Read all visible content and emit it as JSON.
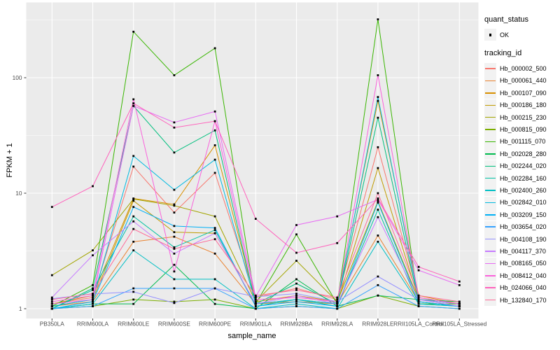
{
  "chart_data": {
    "type": "line",
    "title": "",
    "xlabel": "sample_name",
    "ylabel": "FPKM + 1",
    "y_scale": "log10",
    "y_ticks": [
      1,
      10,
      100
    ],
    "y_minor_ticks": [
      3.162,
      31.62,
      316.2
    ],
    "ylim": [
      1,
      460
    ],
    "grid": "on",
    "legend_position": "right",
    "x_categories": [
      "PB350LA",
      "RRIM600LA",
      "RRIM600LE",
      "RRIM600SE",
      "RRIM600PE",
      "RRIM901LA",
      "RRIM928BA",
      "RRIM928LA",
      "RRIM928LE",
      "RRII105LA_Control",
      "RRII105LA_Stressed"
    ],
    "legend": {
      "quant_status_title": "quant_status",
      "ok_label": "OK",
      "tracking_id_title": "tracking_id"
    },
    "series": [
      {
        "name": "Hb_000002_500",
        "color": "#F8766D",
        "values": [
          1.1,
          1.25,
          17,
          6.8,
          15,
          1.25,
          1.5,
          1.2,
          25,
          1.25,
          1.1
        ]
      },
      {
        "name": "Hb_000061_440",
        "color": "#EA8331",
        "values": [
          1.05,
          1.15,
          3.8,
          4.2,
          3.0,
          1.1,
          1.15,
          1.1,
          4.3,
          1.15,
          1.05
        ]
      },
      {
        "name": "Hb_000107_090",
        "color": "#D89000",
        "values": [
          1.1,
          1.3,
          9.0,
          8.0,
          26,
          1.15,
          1.3,
          1.15,
          63,
          1.3,
          1.1
        ]
      },
      {
        "name": "Hb_000186_180",
        "color": "#C09B00",
        "values": [
          1.05,
          1.2,
          8.6,
          4.6,
          4.5,
          1.1,
          1.2,
          1.1,
          16.5,
          1.2,
          1.1
        ]
      },
      {
        "name": "Hb_000215_230",
        "color": "#A3A500",
        "values": [
          1.95,
          3.2,
          8.9,
          7.8,
          6.3,
          1.15,
          2.6,
          1.15,
          8.5,
          1.2,
          1.1
        ]
      },
      {
        "name": "Hb_000815_090",
        "color": "#7CAE00",
        "values": [
          1.0,
          1.05,
          1.2,
          1.15,
          1.2,
          1.0,
          1.05,
          1.0,
          1.3,
          1.05,
          1.0
        ]
      },
      {
        "name": "Hb_001115_070",
        "color": "#39B600",
        "values": [
          1.05,
          1.6,
          250,
          105,
          180,
          1.1,
          4.4,
          1.1,
          320,
          1.1,
          1.1
        ]
      },
      {
        "name": "Hb_002028_280",
        "color": "#00BB4E",
        "values": [
          1.0,
          1.1,
          1.1,
          2.4,
          1.1,
          1.0,
          1.8,
          1.05,
          1.3,
          1.2,
          1.15
        ]
      },
      {
        "name": "Hb_002244_020",
        "color": "#00BF7D",
        "values": [
          1.0,
          1.5,
          57,
          22.5,
          35,
          1.1,
          1.65,
          1.1,
          45,
          1.15,
          1.05
        ]
      },
      {
        "name": "Hb_002284_160",
        "color": "#00C1A3",
        "values": [
          1.0,
          1.45,
          6.3,
          3.4,
          4.8,
          1.05,
          1.2,
          1.05,
          7.2,
          1.1,
          1.05
        ]
      },
      {
        "name": "Hb_002400_260",
        "color": "#00BFC4",
        "values": [
          1.0,
          1.1,
          3.2,
          1.8,
          1.8,
          1.0,
          1.1,
          1.0,
          3.8,
          1.1,
          1.05
        ]
      },
      {
        "name": "Hb_002842_010",
        "color": "#00BAE0",
        "values": [
          1.05,
          1.2,
          21,
          10.7,
          19.5,
          1.1,
          1.2,
          1.1,
          68,
          1.2,
          1.1
        ]
      },
      {
        "name": "Hb_003209_150",
        "color": "#00B0F6",
        "values": [
          1.0,
          1.15,
          7.6,
          5.2,
          5.0,
          1.05,
          1.15,
          1.05,
          8.3,
          1.15,
          1.05
        ]
      },
      {
        "name": "Hb_003654_020",
        "color": "#35A2FF",
        "values": [
          1.0,
          1.05,
          1.5,
          1.5,
          1.5,
          1.0,
          1.05,
          1.0,
          1.6,
          1.05,
          1.0
        ]
      },
      {
        "name": "Hb_004108_190",
        "color": "#9590FF",
        "values": [
          1.22,
          1.34,
          1.4,
          1.12,
          1.5,
          1.27,
          1.35,
          1.15,
          1.9,
          1.2,
          1.1
        ]
      },
      {
        "name": "Hb_004117_370",
        "color": "#C77CFF",
        "values": [
          1.25,
          2.9,
          5.7,
          3.0,
          4.5,
          1.1,
          1.3,
          1.1,
          6.2,
          1.2,
          1.05
        ]
      },
      {
        "name": "Hb_008165_050",
        "color": "#E76BF3",
        "values": [
          1.1,
          1.2,
          57,
          41,
          51,
          1.27,
          5.3,
          6.3,
          8.8,
          2.15,
          1.6
        ]
      },
      {
        "name": "Hb_008412_040",
        "color": "#FA62DB",
        "values": [
          1.15,
          1.3,
          65,
          2.1,
          42,
          1.2,
          1.25,
          1.15,
          105,
          1.25,
          1.1
        ]
      },
      {
        "name": "Hb_024066_040",
        "color": "#FF62BC",
        "values": [
          7.6,
          11.5,
          60,
          37,
          42,
          6.0,
          3.05,
          3.7,
          9.0,
          2.3,
          1.72
        ]
      },
      {
        "name": "Hb_132840_170",
        "color": "#FF6A98",
        "values": [
          1.2,
          1.35,
          4.9,
          3.3,
          4.0,
          1.3,
          1.45,
          1.25,
          10,
          1.3,
          1.15
        ]
      }
    ],
    "style": {
      "panel_bg": "#EBEBEB",
      "grid_color": "#FFFFFF",
      "tick_color": "#333333",
      "tick_label_color": "#4D4D4D",
      "point_color": "#000000",
      "legend_key_bg": "#F2F2F2"
    }
  }
}
